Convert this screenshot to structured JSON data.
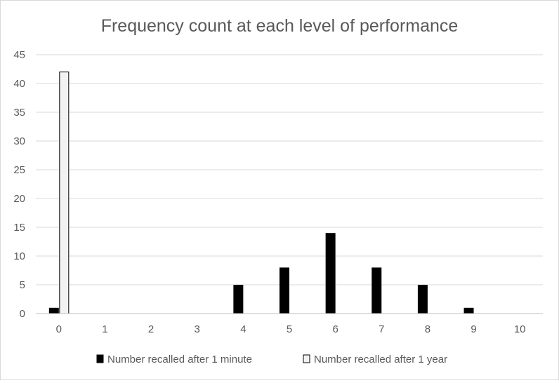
{
  "chart_data": {
    "type": "bar",
    "title": "Frequency count at each level of performance",
    "xlabel": "",
    "ylabel": "",
    "categories": [
      "0",
      "1",
      "2",
      "3",
      "4",
      "5",
      "6",
      "7",
      "8",
      "9",
      "10"
    ],
    "ylim": [
      0,
      45
    ],
    "yticks": [
      "0",
      "5",
      "10",
      "15",
      "20",
      "25",
      "30",
      "35",
      "40",
      "45"
    ],
    "grid": true,
    "legend": "bottom",
    "series": [
      {
        "name": "Number recalled after 1 minute",
        "values": [
          1,
          0,
          0,
          0,
          5,
          8,
          14,
          8,
          5,
          1,
          0
        ],
        "color": "#000000"
      },
      {
        "name": "Number recalled after 1 year",
        "values": [
          42,
          0,
          0,
          0,
          0,
          0,
          0,
          0,
          0,
          0,
          0
        ],
        "color": "#f2f2f2",
        "stroke": "#000000"
      }
    ]
  }
}
